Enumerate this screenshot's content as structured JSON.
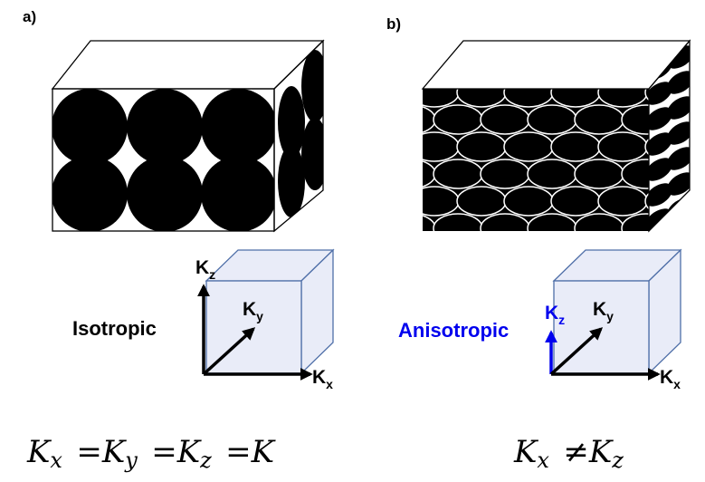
{
  "panels": [
    {
      "label": "a)",
      "caption": "Isotropic",
      "axes": {
        "z": {
          "base": "K",
          "sub": "z"
        },
        "y": {
          "base": "K",
          "sub": "y"
        },
        "x": {
          "base": "K",
          "sub": "x"
        }
      },
      "equation": [
        {
          "base": "K",
          "sub": "x"
        },
        "=",
        {
          "base": "K",
          "sub": "y"
        },
        "=",
        {
          "base": "K",
          "sub": "z"
        },
        "=",
        {
          "base": "K"
        }
      ]
    },
    {
      "label": "b)",
      "caption": "Anisotropic",
      "axes": {
        "z": {
          "base": "K",
          "sub": "z"
        },
        "y": {
          "base": "K",
          "sub": "y"
        },
        "x": {
          "base": "K",
          "sub": "x"
        }
      },
      "equation": [
        {
          "base": "K",
          "sub": "x"
        },
        "≠",
        {
          "base": "K",
          "sub": "z"
        }
      ]
    }
  ]
}
